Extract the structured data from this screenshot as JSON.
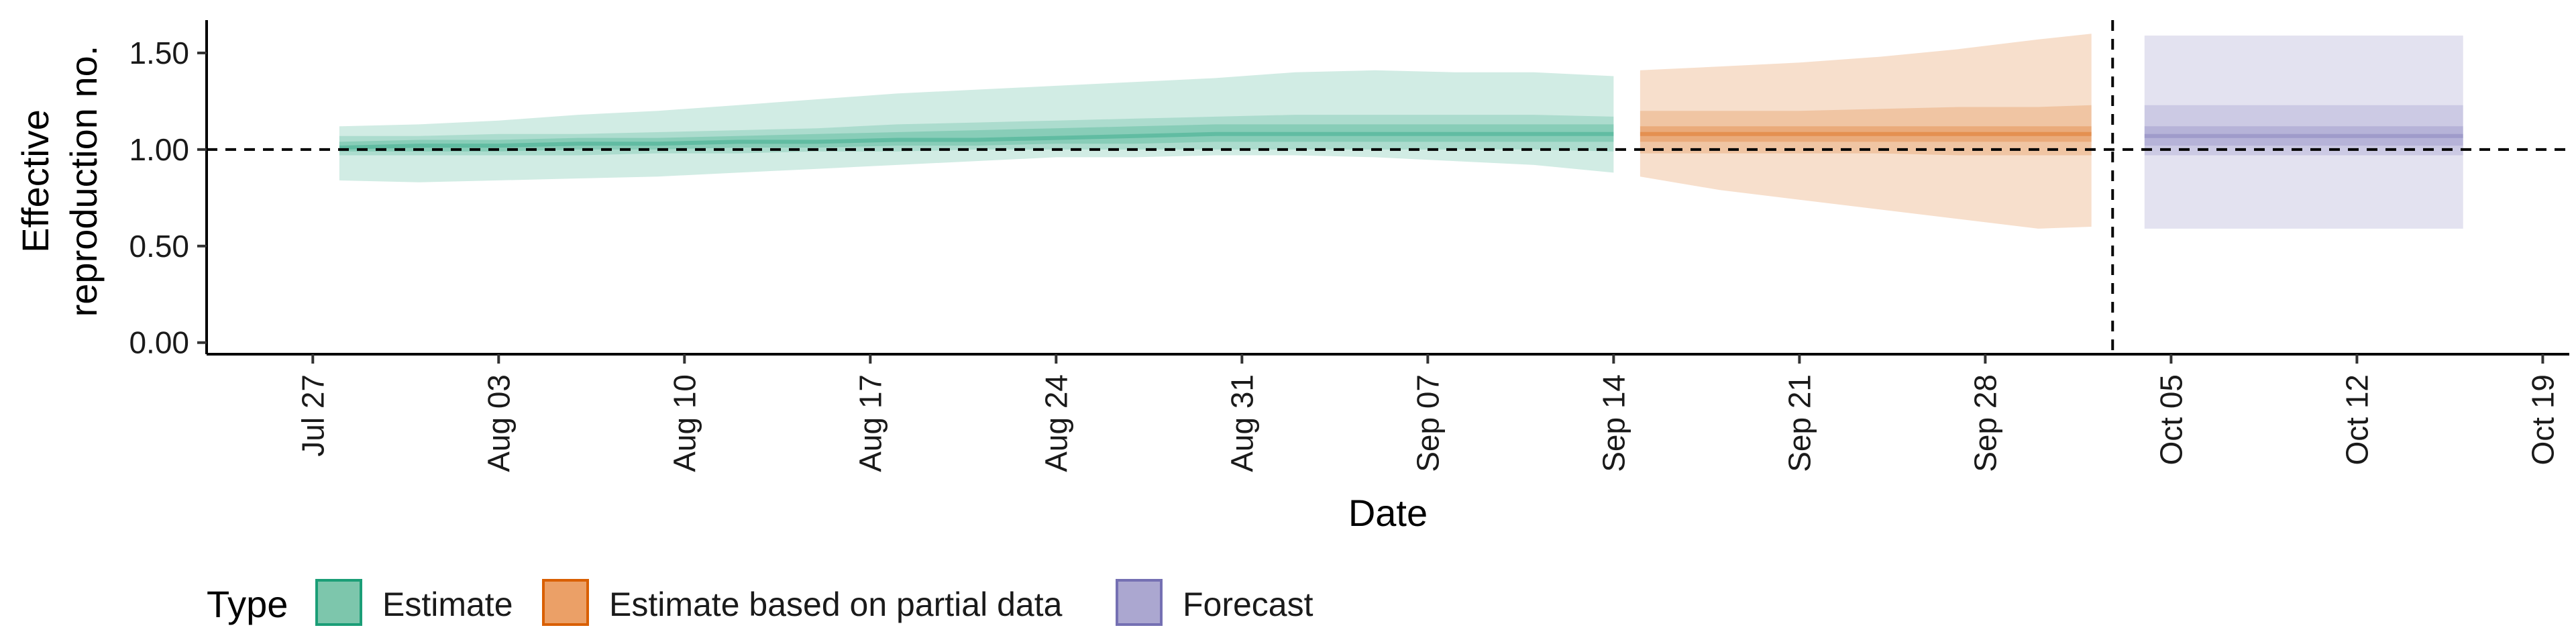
{
  "chart_data": {
    "type": "area",
    "xlabel": "Date",
    "ylabel_lines": [
      "Effective",
      "reproduction no."
    ],
    "ylim": [
      -0.06,
      1.67
    ],
    "xlim": [
      "2021-07-23",
      "2021-10-20"
    ],
    "yticks": [
      {
        "value": 0.0,
        "label": "0.00"
      },
      {
        "value": 0.5,
        "label": "0.50"
      },
      {
        "value": 1.0,
        "label": "1.00"
      },
      {
        "value": 1.5,
        "label": "1.50"
      }
    ],
    "xticks": [
      {
        "date": "2021-07-27",
        "label": "Jul 27"
      },
      {
        "date": "2021-08-03",
        "label": "Aug 03"
      },
      {
        "date": "2021-08-10",
        "label": "Aug 10"
      },
      {
        "date": "2021-08-17",
        "label": "Aug 17"
      },
      {
        "date": "2021-08-24",
        "label": "Aug 24"
      },
      {
        "date": "2021-08-31",
        "label": "Aug 31"
      },
      {
        "date": "2021-09-07",
        "label": "Sep 07"
      },
      {
        "date": "2021-09-14",
        "label": "Sep 14"
      },
      {
        "date": "2021-09-21",
        "label": "Sep 21"
      },
      {
        "date": "2021-09-28",
        "label": "Sep 28"
      },
      {
        "date": "2021-10-05",
        "label": "Oct 05"
      },
      {
        "date": "2021-10-12",
        "label": "Oct 12"
      },
      {
        "date": "2021-10-19",
        "label": "Oct 19"
      }
    ],
    "reference_line_y": 1.0,
    "forecast_start_date": "2021-10-03",
    "legend": {
      "title": "Type",
      "position": "bottom-left",
      "entries": [
        {
          "label": "Estimate",
          "fill": "#7dc6ac",
          "stroke": "#1b9e77"
        },
        {
          "label": "Estimate based on partial data",
          "fill": "#eba067",
          "stroke": "#d95f02"
        },
        {
          "label": "Forecast",
          "fill": "#aba7d0",
          "stroke": "#7570b3"
        }
      ]
    },
    "series": [
      {
        "type_label": "Estimate",
        "color": "#1b9e77",
        "dates": [
          "2021-07-28",
          "2021-07-31",
          "2021-08-03",
          "2021-08-06",
          "2021-08-09",
          "2021-08-12",
          "2021-08-15",
          "2021-08-18",
          "2021-08-21",
          "2021-08-24",
          "2021-08-27",
          "2021-08-30",
          "2021-09-02",
          "2021-09-05",
          "2021-09-08",
          "2021-09-11",
          "2021-09-14"
        ],
        "median": [
          1.01,
          1.02,
          1.02,
          1.03,
          1.03,
          1.04,
          1.04,
          1.05,
          1.05,
          1.06,
          1.07,
          1.08,
          1.08,
          1.08,
          1.08,
          1.08,
          1.08
        ],
        "lower_50": [
          0.99,
          0.99,
          0.99,
          1.0,
          1.0,
          1.01,
          1.01,
          1.02,
          1.02,
          1.03,
          1.03,
          1.04,
          1.04,
          1.04,
          1.04,
          1.04,
          1.04
        ],
        "upper_50": [
          1.04,
          1.05,
          1.05,
          1.06,
          1.06,
          1.07,
          1.08,
          1.09,
          1.1,
          1.11,
          1.12,
          1.13,
          1.13,
          1.13,
          1.13,
          1.13,
          1.13
        ],
        "lower_90": [
          0.97,
          0.97,
          0.97,
          0.97,
          0.98,
          0.98,
          0.99,
          0.99,
          1.0,
          1.0,
          1.0,
          1.0,
          1.0,
          1.0,
          1.0,
          1.0,
          0.99
        ],
        "upper_90": [
          1.07,
          1.07,
          1.08,
          1.08,
          1.09,
          1.1,
          1.11,
          1.13,
          1.14,
          1.15,
          1.16,
          1.17,
          1.18,
          1.18,
          1.18,
          1.18,
          1.17
        ],
        "lower_ci": [
          0.84,
          0.83,
          0.84,
          0.85,
          0.86,
          0.88,
          0.9,
          0.92,
          0.94,
          0.96,
          0.96,
          0.97,
          0.97,
          0.96,
          0.94,
          0.92,
          0.88
        ],
        "upper_ci": [
          1.12,
          1.13,
          1.15,
          1.18,
          1.2,
          1.23,
          1.26,
          1.29,
          1.31,
          1.33,
          1.35,
          1.37,
          1.4,
          1.41,
          1.4,
          1.4,
          1.38
        ]
      },
      {
        "type_label": "Estimate based on partial data",
        "color": "#d95f02",
        "dates": [
          "2021-09-15",
          "2021-09-18",
          "2021-09-21",
          "2021-09-24",
          "2021-09-27",
          "2021-09-30",
          "2021-10-02"
        ],
        "median": [
          1.08,
          1.08,
          1.08,
          1.08,
          1.08,
          1.08,
          1.08
        ],
        "lower_50": [
          1.04,
          1.04,
          1.04,
          1.04,
          1.04,
          1.04,
          1.04
        ],
        "upper_50": [
          1.12,
          1.12,
          1.12,
          1.12,
          1.12,
          1.12,
          1.12
        ],
        "lower_90": [
          0.98,
          0.98,
          0.98,
          0.98,
          0.97,
          0.97,
          0.97
        ],
        "upper_90": [
          1.2,
          1.2,
          1.2,
          1.21,
          1.22,
          1.22,
          1.23
        ],
        "lower_ci": [
          0.86,
          0.79,
          0.74,
          0.69,
          0.64,
          0.59,
          0.6
        ],
        "upper_ci": [
          1.41,
          1.43,
          1.45,
          1.48,
          1.52,
          1.57,
          1.6
        ]
      },
      {
        "type_label": "Forecast",
        "color": "#7570b3",
        "dates": [
          "2021-10-04",
          "2021-10-16"
        ],
        "median": [
          1.07,
          1.07
        ],
        "lower_50": [
          1.02,
          1.02
        ],
        "upper_50": [
          1.12,
          1.12
        ],
        "lower_90": [
          0.97,
          0.97
        ],
        "upper_90": [
          1.23,
          1.23
        ],
        "lower_ci": [
          0.59,
          0.59
        ],
        "upper_ci": [
          1.59,
          1.59
        ]
      }
    ]
  }
}
